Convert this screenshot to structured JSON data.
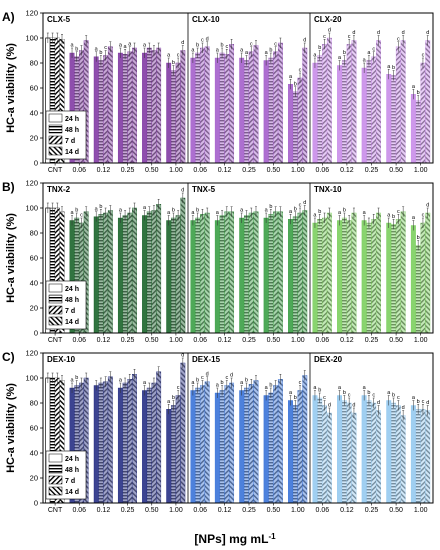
{
  "figure": {
    "xlabel": "[NPs] mg mL",
    "xlabel_sup": "-1",
    "ylabel": "HC-a viability (%)"
  },
  "legend": [
    "24 h",
    "48 h",
    "7 d",
    "14 d"
  ],
  "chart_data": [
    {
      "type": "bar",
      "panel_label": "A)",
      "ylabel": "HC-a viability (%)",
      "ylim": [
        0,
        120
      ],
      "yticks": [
        0,
        20,
        40,
        60,
        80,
        100,
        120
      ],
      "legend_placement": "bottom-left",
      "groups": [
        {
          "title": "CLX-5",
          "categories": [
            "CNT",
            "0.06",
            "0.12",
            "0.25",
            "0.50",
            "1.00"
          ],
          "accent": "#7a2f9e",
          "series": [
            {
              "name": "24 h",
              "values": [
                100,
                88,
                85,
                88,
                88,
                80
              ],
              "sig": [
                "",
                "a",
                "a",
                "a",
                "a",
                "a"
              ]
            },
            {
              "name": "48 h",
              "values": [
                100,
                85,
                82,
                87,
                92,
                74
              ],
              "sig": [
                "",
                "b",
                "b",
                "a",
                "",
                "b"
              ]
            },
            {
              "name": "7 d",
              "values": [
                100,
                90,
                86,
                89,
                90,
                80
              ],
              "sig": [
                "",
                "",
                "c",
                "a",
                "",
                "c"
              ]
            },
            {
              "name": "14 d",
              "values": [
                99,
                98,
                93,
                92,
                92,
                90
              ],
              "sig": [
                "",
                "",
                "",
                "",
                "",
                "d"
              ]
            }
          ]
        },
        {
          "title": "CLX-10",
          "categories": [
            "0.06",
            "0.12",
            "0.25",
            "0.50",
            "1.00"
          ],
          "accent": "#9e55c8",
          "series": [
            {
              "name": "24 h",
              "values": [
                84,
                84,
                84,
                82,
                63
              ],
              "sig": [
                "a",
                "a",
                "a",
                "a",
                "a"
              ]
            },
            {
              "name": "48 h",
              "values": [
                88,
                88,
                82,
                84,
                57
              ],
              "sig": [
                "b",
                "b",
                "a",
                "b",
                "b"
              ]
            },
            {
              "name": "7 d",
              "values": [
                92,
                87,
                89,
                89,
                68
              ],
              "sig": [
                "c",
                "c",
                "c",
                "c",
                "c"
              ]
            },
            {
              "name": "14 d",
              "values": [
                93,
                95,
                94,
                96,
                92
              ],
              "sig": [
                "d",
                "",
                "",
                "",
                "d"
              ]
            }
          ]
        },
        {
          "title": "CLX-20",
          "categories": [
            "0.06",
            "0.12",
            "0.25",
            "0.50",
            "1.00"
          ],
          "accent": "#c586e8",
          "series": [
            {
              "name": "24 h",
              "values": [
                80,
                78,
                76,
                71,
                55
              ],
              "sig": [
                "a",
                "a",
                "a",
                "a",
                "a"
              ]
            },
            {
              "name": "48 h",
              "values": [
                86,
                82,
                82,
                70,
                50
              ],
              "sig": [
                "b",
                "b",
                "a",
                "b",
                "b"
              ]
            },
            {
              "name": "7 d",
              "values": [
                95,
                95,
                85,
                93,
                80
              ],
              "sig": [
                "c",
                "c",
                "c",
                "c",
                "c"
              ]
            },
            {
              "name": "14 d",
              "values": [
                100,
                98,
                98,
                98,
                98
              ],
              "sig": [
                "d",
                "d",
                "d",
                "d",
                "d"
              ]
            }
          ]
        }
      ]
    },
    {
      "type": "bar",
      "panel_label": "B)",
      "ylabel": "HC-a viability (%)",
      "ylim": [
        0,
        120
      ],
      "yticks": [
        0,
        20,
        40,
        60,
        80,
        100,
        120
      ],
      "legend_placement": "bottom-left",
      "groups": [
        {
          "title": "TNX-2",
          "categories": [
            "CNT",
            "0.06",
            "0.12",
            "0.25",
            "0.50",
            "1.00"
          ],
          "accent": "#0d5c1e",
          "series": [
            {
              "name": "24 h",
              "values": [
                100,
                90,
                93,
                92,
                94,
                90
              ],
              "sig": [
                "",
                "a",
                "a",
                "a",
                "a",
                "a"
              ]
            },
            {
              "name": "48 h",
              "values": [
                100,
                92,
                95,
                94,
                97,
                92
              ],
              "sig": [
                "",
                "b",
                "b",
                "",
                "",
                "b"
              ]
            },
            {
              "name": "7 d",
              "values": [
                100,
                88,
                96,
                96,
                98,
                94
              ],
              "sig": [
                "",
                "c",
                "",
                "",
                "",
                ""
              ]
            },
            {
              "name": "14 d",
              "values": [
                97,
                97,
                98,
                100,
                103,
                108
              ],
              "sig": [
                "",
                "",
                "",
                "",
                "",
                "d"
              ]
            }
          ]
        },
        {
          "title": "TNX-5",
          "categories": [
            "0.06",
            "0.12",
            "0.25",
            "0.50",
            "1.00"
          ],
          "accent": "#2f9a3a",
          "series": [
            {
              "name": "24 h",
              "values": [
                90,
                90,
                92,
                92,
                91
              ],
              "sig": [
                "a",
                "a",
                "a",
                "a",
                "a"
              ]
            },
            {
              "name": "48 h",
              "values": [
                92,
                94,
                94,
                95,
                93
              ],
              "sig": [
                "b",
                "",
                "",
                "b",
                "b"
              ]
            },
            {
              "name": "7 d",
              "values": [
                95,
                97,
                96,
                97,
                96
              ],
              "sig": [
                "",
                "",
                "",
                "",
                "c"
              ]
            },
            {
              "name": "14 d",
              "values": [
                96,
                97,
                97,
                97,
                98
              ],
              "sig": [
                "",
                "",
                "",
                "",
                "d"
              ]
            }
          ]
        },
        {
          "title": "TNX-10",
          "categories": [
            "0.06",
            "0.12",
            "0.25",
            "0.50",
            "1.00"
          ],
          "accent": "#74cc55",
          "series": [
            {
              "name": "24 h",
              "values": [
                88,
                90,
                90,
                88,
                86
              ],
              "sig": [
                "a",
                "a",
                "a",
                "a",
                "a"
              ]
            },
            {
              "name": "48 h",
              "values": [
                91,
                92,
                88,
                87,
                70
              ],
              "sig": [
                "b",
                "b",
                "",
                "b",
                "b"
              ]
            },
            {
              "name": "7 d",
              "values": [
                92,
                90,
                91,
                91,
                88
              ],
              "sig": [
                "",
                "",
                "",
                "c",
                "c"
              ]
            },
            {
              "name": "14 d",
              "values": [
                96,
                96,
                96,
                97,
                96
              ],
              "sig": [
                "",
                "",
                "",
                "",
                "d"
              ]
            }
          ]
        }
      ]
    },
    {
      "type": "bar",
      "panel_label": "C)",
      "ylabel": "HC-a viability (%)",
      "ylim": [
        0,
        120
      ],
      "yticks": [
        0,
        20,
        40,
        60,
        80,
        100,
        120
      ],
      "legend_placement": "bottom-left",
      "groups": [
        {
          "title": "DEX-10",
          "categories": [
            "CNT",
            "0.06",
            "0.12",
            "0.25",
            "0.50",
            "1.00"
          ],
          "accent": "#1a237e",
          "series": [
            {
              "name": "24 h",
              "values": [
                100,
                92,
                94,
                92,
                90,
                75
              ],
              "sig": [
                "",
                "a",
                "",
                "a",
                "a",
                "a"
              ]
            },
            {
              "name": "48 h",
              "values": [
                100,
                94,
                96,
                96,
                92,
                78
              ],
              "sig": [
                "",
                "b",
                "",
                "",
                "",
                "b"
              ]
            },
            {
              "name": "7 d",
              "values": [
                100,
                96,
                97,
                99,
                96,
                86
              ],
              "sig": [
                "",
                "",
                "",
                "",
                "",
                "c"
              ]
            },
            {
              "name": "14 d",
              "values": [
                98,
                100,
                101,
                103,
                105,
                112
              ],
              "sig": [
                "",
                "",
                "",
                "",
                "",
                "d"
              ]
            }
          ]
        },
        {
          "title": "DEX-15",
          "categories": [
            "0.06",
            "0.12",
            "0.25",
            "0.50",
            "1.00"
          ],
          "accent": "#2e6bd6",
          "series": [
            {
              "name": "24 h",
              "values": [
                90,
                88,
                90,
                86,
                82
              ],
              "sig": [
                "a",
                "a",
                "a",
                "a",
                "a"
              ]
            },
            {
              "name": "48 h",
              "values": [
                92,
                90,
                92,
                88,
                78
              ],
              "sig": [
                "b",
                "b",
                "b",
                "b",
                "b"
              ]
            },
            {
              "name": "7 d",
              "values": [
                94,
                94,
                95,
                94,
                90
              ],
              "sig": [
                "c",
                "c",
                "",
                "",
                "c"
              ]
            },
            {
              "name": "14 d",
              "values": [
                97,
                96,
                98,
                99,
                102
              ],
              "sig": [
                "d",
                "d",
                "",
                "",
                ""
              ]
            }
          ]
        },
        {
          "title": "DEX-20",
          "categories": [
            "0.06",
            "0.12",
            "0.25",
            "0.50",
            "1.00"
          ],
          "accent": "#8fc6ee",
          "series": [
            {
              "name": "24 h",
              "values": [
                86,
                86,
                86,
                82,
                78
              ],
              "sig": [
                "a",
                "a",
                "a",
                "a",
                "a"
              ]
            },
            {
              "name": "48 h",
              "values": [
                84,
                82,
                82,
                80,
                75
              ],
              "sig": [
                "b",
                "b",
                "b",
                "b",
                "b"
              ]
            },
            {
              "name": "7 d",
              "values": [
                78,
                80,
                80,
                78,
                75
              ],
              "sig": [
                "c",
                "c",
                "c",
                "c",
                "c"
              ]
            },
            {
              "name": "14 d",
              "values": [
                72,
                72,
                74,
                70,
                74
              ],
              "sig": [
                "d",
                "d",
                "d",
                "d",
                "d"
              ]
            }
          ]
        }
      ]
    }
  ]
}
